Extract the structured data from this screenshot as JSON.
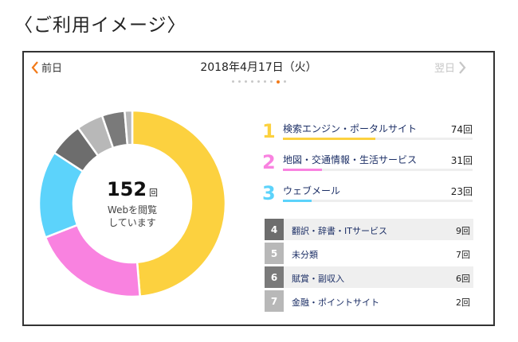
{
  "page_title": "〈ご利用イメージ〉",
  "nav": {
    "prev_label": "前日",
    "date": "2018年4月17日（火）",
    "next_label": "翌日",
    "page_count": 9,
    "active_page": 8
  },
  "summary": {
    "total": "152",
    "unit": "回",
    "label_line1": "Webを閲覧",
    "label_line2": "しています"
  },
  "colors": {
    "rank1": "#fcd13f",
    "rank2": "#f982e0",
    "rank3": "#5cd3fb",
    "rank4": "#6d6d6d",
    "rank5": "#b8b8b8",
    "rank6": "#7a7a7a",
    "rank7": "#b8b8b8",
    "accent": "#f27a18"
  },
  "chart_data": {
    "type": "pie",
    "variant": "donut",
    "categories": [
      "検索エンジン・ポータルサイト",
      "地図・交通情報・生活サービス",
      "ウェブメール",
      "翻訳・辞書・ITサービス",
      "未分類",
      "賦賞・副収入",
      "金融・ポイントサイト"
    ],
    "values": [
      74,
      31,
      23,
      9,
      7,
      6,
      2
    ],
    "total": 152
  },
  "top_items": [
    {
      "rank": "1",
      "label": "検索エンジン・ポータルサイト",
      "count": "74回",
      "value": 74
    },
    {
      "rank": "2",
      "label": "地図・交通情報・生活サービス",
      "count": "31回",
      "value": 31
    },
    {
      "rank": "3",
      "label": "ウェブメール",
      "count": "23回",
      "value": 23
    }
  ],
  "other_items": [
    {
      "rank": "4",
      "label": "翻訳・辞書・ITサービス",
      "count": "9回"
    },
    {
      "rank": "5",
      "label": "未分類",
      "count": "7回"
    },
    {
      "rank": "6",
      "label": "賦賞・副収入",
      "count": "6回"
    },
    {
      "rank": "7",
      "label": "金融・ポイントサイト",
      "count": "2回"
    }
  ]
}
